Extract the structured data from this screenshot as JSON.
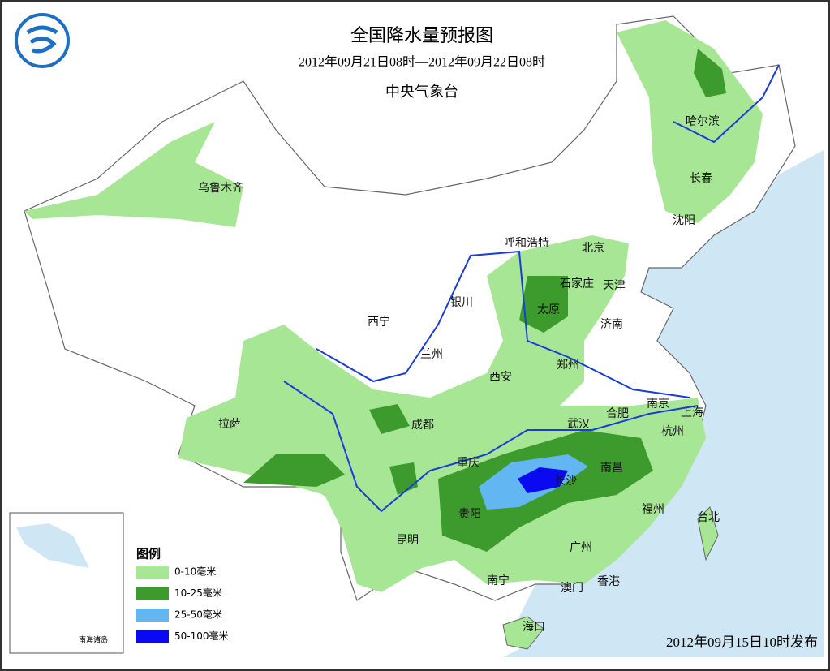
{
  "header": {
    "title": "全国降水量预报图",
    "period": "2012年09月21日08时—2012年09月22日08时",
    "issuer": "中央气象台"
  },
  "cities": [
    "乌鲁木齐",
    "哈尔滨",
    "长春",
    "沈阳",
    "呼和浩特",
    "北京",
    "石家庄",
    "天津",
    "太原",
    "银川",
    "西宁",
    "兰州",
    "济南",
    "郑州",
    "西安",
    "成都",
    "拉萨",
    "重庆",
    "武汉",
    "合肥",
    "南京",
    "上海",
    "杭州",
    "长沙",
    "南昌",
    "贵阳",
    "福州",
    "台北",
    "昆明",
    "广州",
    "南宁",
    "澳门",
    "香港",
    "海口"
  ],
  "legend": {
    "title": "图例",
    "items": [
      {
        "label": "0-10毫米",
        "color": "#a6e694"
      },
      {
        "label": "10-25毫米",
        "color": "#3c9b2c"
      },
      {
        "label": "25-50毫米",
        "color": "#62b6f2"
      },
      {
        "label": "50-100毫米",
        "color": "#0a0af0"
      }
    ]
  },
  "inset_label": "南海诸岛",
  "footer": "2012年09月15日10时发布"
}
